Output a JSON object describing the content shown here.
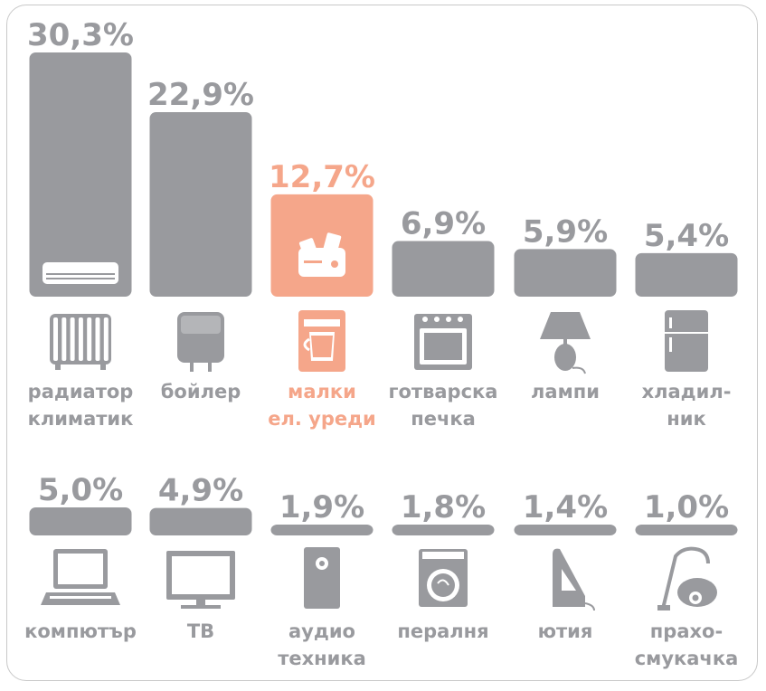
{
  "chart_data": {
    "type": "bar",
    "title": "",
    "xlabel": "",
    "ylabel": "",
    "colors": {
      "default": "#999a9e",
      "highlight": "#f5a68a"
    },
    "rows": [
      {
        "categories": [
          {
            "label": "радиатор климатик",
            "lines": [
              "радиатор",
              "климатик"
            ],
            "value": 30.3,
            "value_label": "30,3%",
            "icon": "radiator-icon",
            "bar_icon": "air-conditioner-icon",
            "highlight": false
          },
          {
            "label": "бойлер",
            "lines": [
              "бойлер"
            ],
            "value": 22.9,
            "value_label": "22,9%",
            "icon": "boiler-icon",
            "highlight": false
          },
          {
            "label": "малки ел. уреди",
            "lines": [
              "малки",
              "ел. уреди"
            ],
            "value": 12.7,
            "value_label": "12,7%",
            "icon": "coffee-maker-icon",
            "bar_icon": "toaster-icon",
            "highlight": true
          },
          {
            "label": "готварска печка",
            "lines": [
              "готварска",
              "печка"
            ],
            "value": 6.9,
            "value_label": "6,9%",
            "icon": "stove-icon",
            "highlight": false
          },
          {
            "label": "лампи",
            "lines": [
              "лампи"
            ],
            "value": 5.9,
            "value_label": "5,9%",
            "icon": "lamp-icon",
            "highlight": false
          },
          {
            "label": "хладилник",
            "lines": [
              "хладил-",
              "ник"
            ],
            "value": 5.4,
            "value_label": "5,4%",
            "icon": "fridge-icon",
            "highlight": false
          }
        ]
      },
      {
        "categories": [
          {
            "label": "компютър",
            "lines": [
              "компютър"
            ],
            "value": 5.0,
            "value_label": "5,0%",
            "icon": "laptop-icon",
            "highlight": false
          },
          {
            "label": "ТВ",
            "lines": [
              "ТВ"
            ],
            "value": 4.9,
            "value_label": "4,9%",
            "icon": "tv-icon",
            "highlight": false
          },
          {
            "label": "аудио техника",
            "lines": [
              "аудио",
              "техника"
            ],
            "value": 1.9,
            "value_label": "1,9%",
            "icon": "speaker-icon",
            "highlight": false
          },
          {
            "label": "пералня",
            "lines": [
              "пералня"
            ],
            "value": 1.8,
            "value_label": "1,8%",
            "icon": "washing-machine-icon",
            "highlight": false
          },
          {
            "label": "ютия",
            "lines": [
              "ютия"
            ],
            "value": 1.4,
            "value_label": "1,4%",
            "icon": "iron-icon",
            "highlight": false
          },
          {
            "label": "прахосмукачка",
            "lines": [
              "прахо-",
              "смукачка"
            ],
            "value": 1.0,
            "value_label": "1,0%",
            "icon": "vacuum-cleaner-icon",
            "highlight": false
          }
        ]
      }
    ]
  }
}
